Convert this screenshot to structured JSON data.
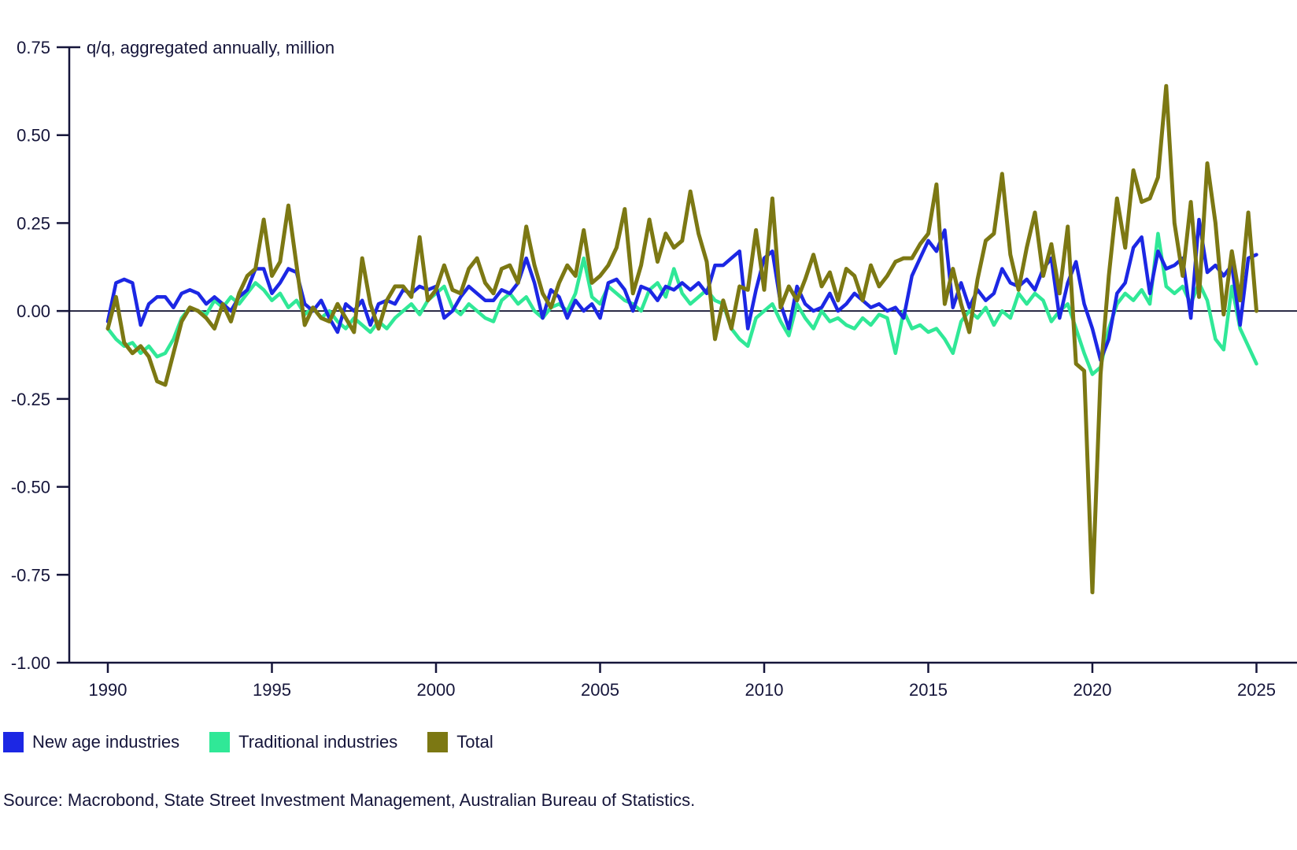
{
  "chart": {
    "source": "Source: Macrobond, State Street Investment Management, Australian Bureau of Statistics.",
    "legend": [
      {
        "label": "New age industries",
        "color": "#1c27e4"
      },
      {
        "label": "Traditional industries",
        "color": "#30e897"
      },
      {
        "label": "Total",
        "color": "#7c7813"
      }
    ],
    "colors": {
      "axis": "#15153a",
      "zero_line": "#0d0d2b",
      "background": "#ffffff"
    }
  },
  "chart_data": {
    "type": "line",
    "axis_label": "q/q, aggregated annually, million",
    "x_start_year": 1990,
    "frequency": "quarterly",
    "x_tick_years": [
      1990,
      1995,
      2000,
      2005,
      2010,
      2015,
      2020,
      2025
    ],
    "ylim": [
      -1.0,
      0.75
    ],
    "y_ticks": [
      0.75,
      0.5,
      0.25,
      0.0,
      -0.25,
      -0.5,
      -0.75,
      -1.0
    ],
    "grid": "off",
    "legend_position": "bottom-left",
    "series": [
      {
        "name": "New age industries",
        "color": "#1c27e4",
        "values": [
          -0.03,
          0.08,
          0.09,
          0.08,
          -0.04,
          0.02,
          0.04,
          0.04,
          0.01,
          0.05,
          0.06,
          0.05,
          0.02,
          0.04,
          0.02,
          0.0,
          0.04,
          0.06,
          0.12,
          0.12,
          0.05,
          0.08,
          0.12,
          0.11,
          0.02,
          0.0,
          0.03,
          -0.02,
          -0.06,
          0.02,
          0.0,
          0.03,
          -0.04,
          0.02,
          0.03,
          0.02,
          0.06,
          0.05,
          0.07,
          0.06,
          0.07,
          -0.02,
          0.0,
          0.04,
          0.07,
          0.05,
          0.03,
          0.03,
          0.06,
          0.05,
          0.08,
          0.15,
          0.08,
          -0.02,
          0.06,
          0.04,
          -0.02,
          0.03,
          0.0,
          0.02,
          -0.02,
          0.08,
          0.09,
          0.06,
          0.0,
          0.07,
          0.06,
          0.03,
          0.07,
          0.06,
          0.08,
          0.06,
          0.08,
          0.05,
          0.13,
          0.13,
          0.15,
          0.17,
          -0.05,
          0.06,
          0.15,
          0.17,
          0.02,
          -0.05,
          0.07,
          0.02,
          0.0,
          0.01,
          0.05,
          0.0,
          0.02,
          0.05,
          0.03,
          0.01,
          0.02,
          0.0,
          0.01,
          -0.02,
          0.1,
          0.15,
          0.2,
          0.17,
          0.23,
          0.01,
          0.08,
          0.01,
          0.06,
          0.03,
          0.05,
          0.12,
          0.08,
          0.07,
          0.09,
          0.06,
          0.12,
          0.15,
          -0.02,
          0.08,
          0.14,
          0.02,
          -0.05,
          -0.14,
          -0.08,
          0.05,
          0.08,
          0.18,
          0.21,
          0.05,
          0.17,
          0.12,
          0.13,
          0.15,
          -0.02,
          0.26,
          0.11,
          0.13,
          0.1,
          0.13,
          -0.04,
          0.15,
          0.16
        ]
      },
      {
        "name": "Traditional industries",
        "color": "#30e897",
        "values": [
          -0.05,
          -0.08,
          -0.1,
          -0.09,
          -0.12,
          -0.1,
          -0.13,
          -0.12,
          -0.08,
          -0.02,
          0.01,
          0.0,
          -0.01,
          0.03,
          0.01,
          0.04,
          0.02,
          0.05,
          0.08,
          0.06,
          0.03,
          0.05,
          0.01,
          0.03,
          -0.01,
          0.01,
          -0.02,
          0.0,
          -0.03,
          -0.05,
          -0.02,
          -0.04,
          -0.06,
          -0.03,
          -0.05,
          -0.02,
          0.0,
          0.02,
          -0.01,
          0.03,
          0.05,
          0.07,
          0.01,
          -0.01,
          0.02,
          0.0,
          -0.02,
          -0.03,
          0.03,
          0.05,
          0.02,
          0.04,
          0.0,
          -0.02,
          0.01,
          0.02,
          0.0,
          0.05,
          0.15,
          0.04,
          0.02,
          0.07,
          0.05,
          0.03,
          0.02,
          0.0,
          0.06,
          0.08,
          0.04,
          0.12,
          0.05,
          0.02,
          0.04,
          0.06,
          0.03,
          0.02,
          -0.05,
          -0.08,
          -0.1,
          -0.02,
          0.0,
          0.02,
          -0.03,
          -0.07,
          0.02,
          -0.02,
          -0.05,
          0.0,
          -0.03,
          -0.02,
          -0.04,
          -0.05,
          -0.02,
          -0.04,
          -0.01,
          -0.02,
          -0.12,
          0.0,
          -0.05,
          -0.04,
          -0.06,
          -0.05,
          -0.08,
          -0.12,
          -0.03,
          0.0,
          -0.02,
          0.01,
          -0.04,
          0.0,
          -0.02,
          0.05,
          0.02,
          0.05,
          0.03,
          -0.03,
          0.0,
          0.02,
          -0.05,
          -0.12,
          -0.18,
          -0.16,
          -0.05,
          0.02,
          0.05,
          0.03,
          0.06,
          0.02,
          0.22,
          0.07,
          0.05,
          0.07,
          0.02,
          0.08,
          0.03,
          -0.08,
          -0.11,
          0.07,
          -0.05,
          -0.1,
          -0.15
        ]
      },
      {
        "name": "Total",
        "color": "#7c7813",
        "values": [
          -0.05,
          0.04,
          -0.09,
          -0.12,
          -0.1,
          -0.13,
          -0.2,
          -0.21,
          -0.12,
          -0.03,
          0.01,
          0.0,
          -0.02,
          -0.05,
          0.02,
          -0.03,
          0.05,
          0.1,
          0.12,
          0.26,
          0.1,
          0.14,
          0.3,
          0.13,
          -0.04,
          0.01,
          -0.02,
          -0.03,
          0.02,
          -0.02,
          -0.06,
          0.15,
          0.02,
          -0.05,
          0.03,
          0.07,
          0.07,
          0.04,
          0.21,
          0.03,
          0.06,
          0.13,
          0.06,
          0.05,
          0.12,
          0.15,
          0.08,
          0.05,
          0.12,
          0.13,
          0.08,
          0.24,
          0.13,
          0.05,
          0.01,
          0.08,
          0.13,
          0.1,
          0.23,
          0.08,
          0.1,
          0.13,
          0.18,
          0.29,
          0.05,
          0.13,
          0.26,
          0.14,
          0.22,
          0.18,
          0.2,
          0.34,
          0.22,
          0.14,
          -0.08,
          0.03,
          -0.05,
          0.07,
          0.06,
          0.23,
          0.06,
          0.32,
          0.01,
          0.07,
          0.03,
          0.09,
          0.16,
          0.07,
          0.11,
          0.03,
          0.12,
          0.1,
          0.03,
          0.13,
          0.07,
          0.1,
          0.14,
          0.15,
          0.15,
          0.19,
          0.22,
          0.36,
          0.02,
          0.12,
          0.02,
          -0.06,
          0.09,
          0.2,
          0.22,
          0.39,
          0.16,
          0.06,
          0.18,
          0.28,
          0.1,
          0.19,
          0.05,
          0.24,
          -0.15,
          -0.17,
          -0.8,
          -0.18,
          0.1,
          0.32,
          0.18,
          0.4,
          0.31,
          0.32,
          0.38,
          0.64,
          0.25,
          0.1,
          0.31,
          0.04,
          0.42,
          0.25,
          -0.01,
          0.17,
          0.03,
          0.28,
          0.0
        ]
      }
    ]
  }
}
